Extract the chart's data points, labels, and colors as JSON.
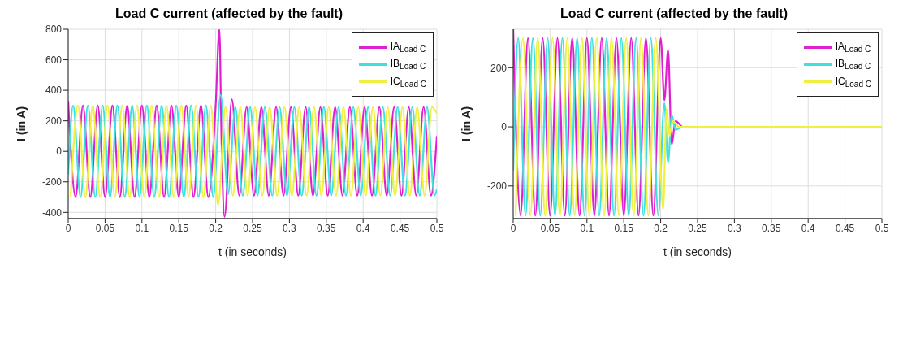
{
  "chart_data": [
    {
      "type": "line",
      "title": "Load C current (affected by the fault)",
      "xlabel": "t (in seconds)",
      "ylabel": "I (in A)",
      "xlim": [
        0,
        0.5
      ],
      "xticks": [
        0,
        0.05,
        0.1,
        0.15,
        0.2,
        0.25,
        0.3,
        0.35,
        0.4,
        0.45,
        0.5
      ],
      "ylim": [
        -440,
        800
      ],
      "yticks": [
        -400,
        -200,
        0,
        200,
        400,
        600,
        800
      ],
      "grid": true,
      "legend": "top right",
      "series": [
        {
          "name": "IA$_{Load C}$",
          "color": "#e020d0",
          "x": [
            0,
            0.01,
            0.02,
            0.03,
            0.04,
            0.05,
            0.06,
            0.07,
            0.08,
            0.09,
            0.1,
            0.11,
            0.12,
            0.13,
            0.14,
            0.15,
            0.16,
            0.17,
            0.18,
            0.19,
            0.2,
            0.205,
            0.208,
            0.212,
            0.222,
            0.232,
            0.242,
            0.252,
            0.262,
            0.272,
            0.282,
            0.292,
            0.302,
            0.312,
            0.322,
            0.332,
            0.342,
            0.352,
            0.362,
            0.372,
            0.382,
            0.392,
            0.402,
            0.412,
            0.422,
            0.432,
            0.442,
            0.452,
            0.462,
            0.472,
            0.482,
            0.492,
            0.5
          ],
          "values": [
            330,
            -300,
            300,
            -300,
            300,
            -300,
            300,
            -300,
            300,
            -300,
            300,
            -300,
            300,
            -300,
            300,
            -300,
            300,
            -300,
            300,
            -300,
            300,
            800,
            50,
            -430,
            340,
            -290,
            290,
            -290,
            290,
            -290,
            290,
            -290,
            290,
            -290,
            290,
            -290,
            290,
            -290,
            290,
            -290,
            290,
            -290,
            290,
            -290,
            290,
            -290,
            290,
            -290,
            290,
            -290,
            290,
            -290,
            100
          ]
        },
        {
          "name": "IB$_{Load C}$",
          "color": "#40e0e0",
          "x": [
            0,
            0.0067,
            0.0167,
            0.0267,
            0.0367,
            0.0467,
            0.0567,
            0.0667,
            0.0767,
            0.0867,
            0.0967,
            0.1067,
            0.1167,
            0.1267,
            0.1367,
            0.1467,
            0.1567,
            0.1667,
            0.1767,
            0.1867,
            0.1967,
            0.2067,
            0.2167,
            0.2267,
            0.2367,
            0.2467,
            0.2567,
            0.2667,
            0.2767,
            0.2867,
            0.2967,
            0.3067,
            0.3167,
            0.3267,
            0.3367,
            0.3467,
            0.3567,
            0.3667,
            0.3767,
            0.3867,
            0.3967,
            0.4067,
            0.4167,
            0.4267,
            0.4367,
            0.4467,
            0.4567,
            0.4667,
            0.4767,
            0.4867,
            0.4967,
            0.5
          ],
          "values": [
            -150,
            300,
            -300,
            300,
            -300,
            300,
            -300,
            300,
            -300,
            300,
            -300,
            300,
            -300,
            300,
            -300,
            300,
            -300,
            300,
            -300,
            300,
            -300,
            370,
            -280,
            290,
            -290,
            290,
            -290,
            290,
            -290,
            290,
            -290,
            290,
            -290,
            290,
            -290,
            290,
            -290,
            290,
            -290,
            290,
            -290,
            290,
            -290,
            290,
            -290,
            290,
            -290,
            290,
            -290,
            290,
            -290,
            -250
          ]
        },
        {
          "name": "IC$_{Load C}$",
          "color": "#f0f040",
          "x": [
            0.0033,
            0.0133,
            0.0233,
            0.0333,
            0.0433,
            0.0533,
            0.0633,
            0.0733,
            0.0833,
            0.0933,
            0.1033,
            0.1133,
            0.1233,
            0.1333,
            0.1433,
            0.1533,
            0.1633,
            0.1733,
            0.1833,
            0.1933,
            0.2033,
            0.2133,
            0.2233,
            0.2333,
            0.2433,
            0.2533,
            0.2633,
            0.2733,
            0.2833,
            0.2933,
            0.3033,
            0.3133,
            0.3233,
            0.3333,
            0.3433,
            0.3533,
            0.3633,
            0.3733,
            0.3833,
            0.3933,
            0.4033,
            0.4133,
            0.4233,
            0.4333,
            0.4433,
            0.4533,
            0.4633,
            0.4733,
            0.4833,
            0.4933,
            0.5
          ],
          "values": [
            -300,
            300,
            -300,
            300,
            -300,
            300,
            -300,
            300,
            -300,
            300,
            -300,
            300,
            -300,
            300,
            -300,
            300,
            -300,
            300,
            -300,
            300,
            -350,
            290,
            -290,
            290,
            -290,
            290,
            -290,
            290,
            -290,
            290,
            -290,
            290,
            -290,
            290,
            -290,
            290,
            -290,
            290,
            -290,
            290,
            -290,
            290,
            -290,
            290,
            -290,
            290,
            -290,
            290,
            -290,
            290,
            250
          ]
        }
      ]
    },
    {
      "type": "line",
      "title": "Load C current (affected by the fault)",
      "xlabel": "t (in seconds)",
      "ylabel": "I (in A)",
      "xlim": [
        0,
        0.5
      ],
      "xticks": [
        0,
        0.05,
        0.1,
        0.15,
        0.2,
        0.25,
        0.3,
        0.35,
        0.4,
        0.45,
        0.5
      ],
      "ylim": [
        -310,
        330
      ],
      "yticks": [
        -200,
        0,
        200
      ],
      "grid": true,
      "legend": "top right",
      "series": [
        {
          "name": "IA$_{Load C}$",
          "color": "#e020d0",
          "x": [
            0,
            0.01,
            0.02,
            0.03,
            0.04,
            0.05,
            0.06,
            0.07,
            0.08,
            0.09,
            0.1,
            0.11,
            0.12,
            0.13,
            0.14,
            0.15,
            0.16,
            0.17,
            0.18,
            0.19,
            0.2,
            0.205,
            0.21,
            0.215,
            0.22,
            0.23,
            0.5
          ],
          "values": [
            330,
            -300,
            300,
            -300,
            300,
            -300,
            300,
            -300,
            300,
            -300,
            300,
            -300,
            300,
            -300,
            300,
            -300,
            300,
            -300,
            300,
            -300,
            300,
            90,
            260,
            -60,
            20,
            0,
            0
          ]
        },
        {
          "name": "IB$_{Load C}$",
          "color": "#40e0e0",
          "x": [
            0,
            0.0067,
            0.0167,
            0.0267,
            0.0367,
            0.0467,
            0.0567,
            0.0667,
            0.0767,
            0.0867,
            0.0967,
            0.1067,
            0.1167,
            0.1267,
            0.1367,
            0.1467,
            0.1567,
            0.1667,
            0.1767,
            0.1867,
            0.1967,
            0.205,
            0.21,
            0.215,
            0.22,
            0.23,
            0.5
          ],
          "values": [
            -150,
            300,
            -300,
            300,
            -300,
            300,
            -300,
            300,
            -300,
            300,
            -300,
            300,
            -300,
            300,
            -300,
            300,
            -300,
            300,
            -300,
            300,
            -300,
            80,
            -120,
            40,
            -10,
            0,
            0
          ]
        },
        {
          "name": "IC$_{Load C}$",
          "color": "#f0f040",
          "x": [
            0.0033,
            0.0133,
            0.0233,
            0.0333,
            0.0433,
            0.0533,
            0.0633,
            0.0733,
            0.0833,
            0.0933,
            0.1033,
            0.1133,
            0.1233,
            0.1333,
            0.1433,
            0.1533,
            0.1633,
            0.1733,
            0.1833,
            0.1933,
            0.2033,
            0.208,
            0.212,
            0.216,
            0.225,
            0.5
          ],
          "values": [
            -300,
            300,
            -300,
            300,
            -300,
            300,
            -300,
            300,
            -300,
            300,
            -300,
            300,
            -300,
            300,
            -300,
            300,
            -300,
            300,
            -300,
            300,
            -280,
            60,
            -30,
            20,
            0,
            0
          ]
        }
      ]
    }
  ]
}
